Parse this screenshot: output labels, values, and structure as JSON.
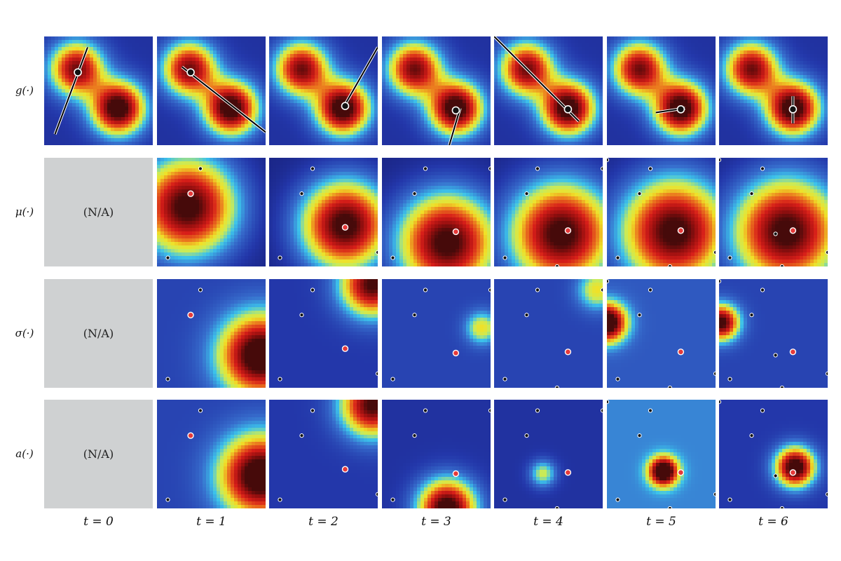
{
  "figure": {
    "row_labels": [
      "g(·)",
      "μ(·)",
      "σ(·)",
      "a(·)"
    ],
    "col_labels": [
      "t = 0",
      "t = 1",
      "t = 2",
      "t = 3",
      "t = 4",
      "t = 5",
      "t = 6"
    ],
    "na_text": "(N/A)",
    "colormap": "jet",
    "colors": {
      "na_background": "#cfd1d2",
      "contour": "#ffffff",
      "observed_point": "#111111",
      "current_query": "#e63a3a",
      "line": "#000000"
    }
  }
}
